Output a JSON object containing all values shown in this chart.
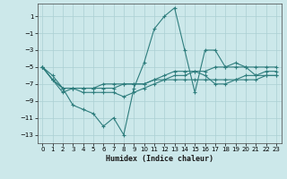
{
  "xlabel": "Humidex (Indice chaleur)",
  "x": [
    0,
    1,
    2,
    3,
    4,
    5,
    6,
    7,
    8,
    9,
    10,
    11,
    12,
    13,
    14,
    15,
    16,
    17,
    18,
    19,
    20,
    21,
    22,
    23
  ],
  "line1": [
    -5,
    -6,
    -7.5,
    -9.5,
    -10,
    -10.5,
    -12,
    -11,
    -13,
    -7.5,
    -4.5,
    -0.5,
    1,
    2,
    -3,
    -8,
    -3,
    -3,
    -5,
    -4.5,
    -5,
    -6,
    -6,
    -6
  ],
  "line2": [
    -5,
    -6.5,
    -8,
    -7.5,
    -7.5,
    -7.5,
    -7.5,
    -7.5,
    -7,
    -7,
    -7,
    -6.5,
    -6,
    -5.5,
    -5.5,
    -5.5,
    -6,
    -7,
    -7,
    -6.5,
    -6,
    -6,
    -5.5,
    -5.5
  ],
  "line3": [
    -5,
    -6.5,
    -7.5,
    -7.5,
    -7.5,
    -7.5,
    -7,
    -7,
    -7,
    -7,
    -7,
    -6.5,
    -6.5,
    -6,
    -6,
    -5.5,
    -5.5,
    -5,
    -5,
    -5,
    -5,
    -5,
    -5,
    -5
  ],
  "line4": [
    -5,
    -6.5,
    -7.5,
    -7.5,
    -8,
    -8,
    -8,
    -8,
    -8.5,
    -8,
    -7.5,
    -7,
    -6.5,
    -6.5,
    -6.5,
    -6.5,
    -6.5,
    -6.5,
    -6.5,
    -6.5,
    -6.5,
    -6.5,
    -6,
    -6
  ],
  "color": "#2e7d7d",
  "bg_color": "#cce8ea",
  "grid_color": "#aacfd3",
  "ylim": [
    -14,
    2
  ],
  "xlim": [
    -0.5,
    23.5
  ],
  "yticks": [
    1,
    -1,
    -3,
    -5,
    -7,
    -9,
    -11,
    -13
  ],
  "xticks": [
    0,
    1,
    2,
    3,
    4,
    5,
    6,
    7,
    8,
    9,
    10,
    11,
    12,
    13,
    14,
    15,
    16,
    17,
    18,
    19,
    20,
    21,
    22,
    23
  ]
}
